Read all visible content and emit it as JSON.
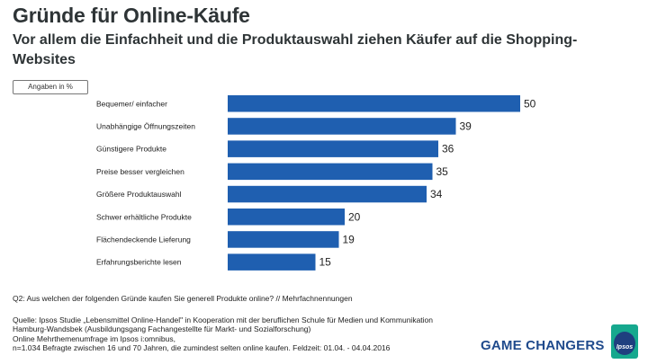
{
  "header": {
    "title": "Gründe für Online-Käufe",
    "subtitle": "Vor allem die Einfachheit und die Produktauswahl ziehen Käufer auf die Shopping-Websites",
    "unit_label": "Angaben in %"
  },
  "chart_data": {
    "type": "bar",
    "orientation": "horizontal",
    "title": "Gründe für Online-Käufe",
    "xlabel": "",
    "ylabel": "",
    "xlim": [
      0,
      50
    ],
    "bar_color": "#1f5fb0",
    "categories": [
      "Bequemer/ einfacher",
      "Unabhängige Öffnungszeiten",
      "Günstigere Produkte",
      "Preise besser vergleichen",
      "Größere Produktauswahl",
      "Schwer erhältliche Produkte",
      "Flächendeckende Lieferung",
      "Erfahrungsberichte lesen"
    ],
    "values": [
      50,
      39,
      36,
      35,
      34,
      20,
      19,
      15
    ]
  },
  "footer": {
    "question": "Q2: Aus welchen der folgenden Gründe kaufen Sie generell Produkte online? // Mehrfachnennungen",
    "source_lines": [
      "Quelle: Ipsos Studie „Lebensmittel Online-Handel\" in Kooperation mit der beruflichen Schule für Medien und Kommunikation",
      "Hamburg-Wandsbek (Ausbildungsgang Fachangestellte für Markt- und Sozialforschung)",
      "Online Mehrthemenumfrage im Ipsos i:omnibus,",
      "n=1.034 Befragte zwischen 16 und 70 Jahren, die zumindest selten online kaufen. Feldzeit: 01.04. - 04.04.2016"
    ],
    "slogan": "GAME CHANGERS",
    "logo_text": "Ipsos"
  }
}
